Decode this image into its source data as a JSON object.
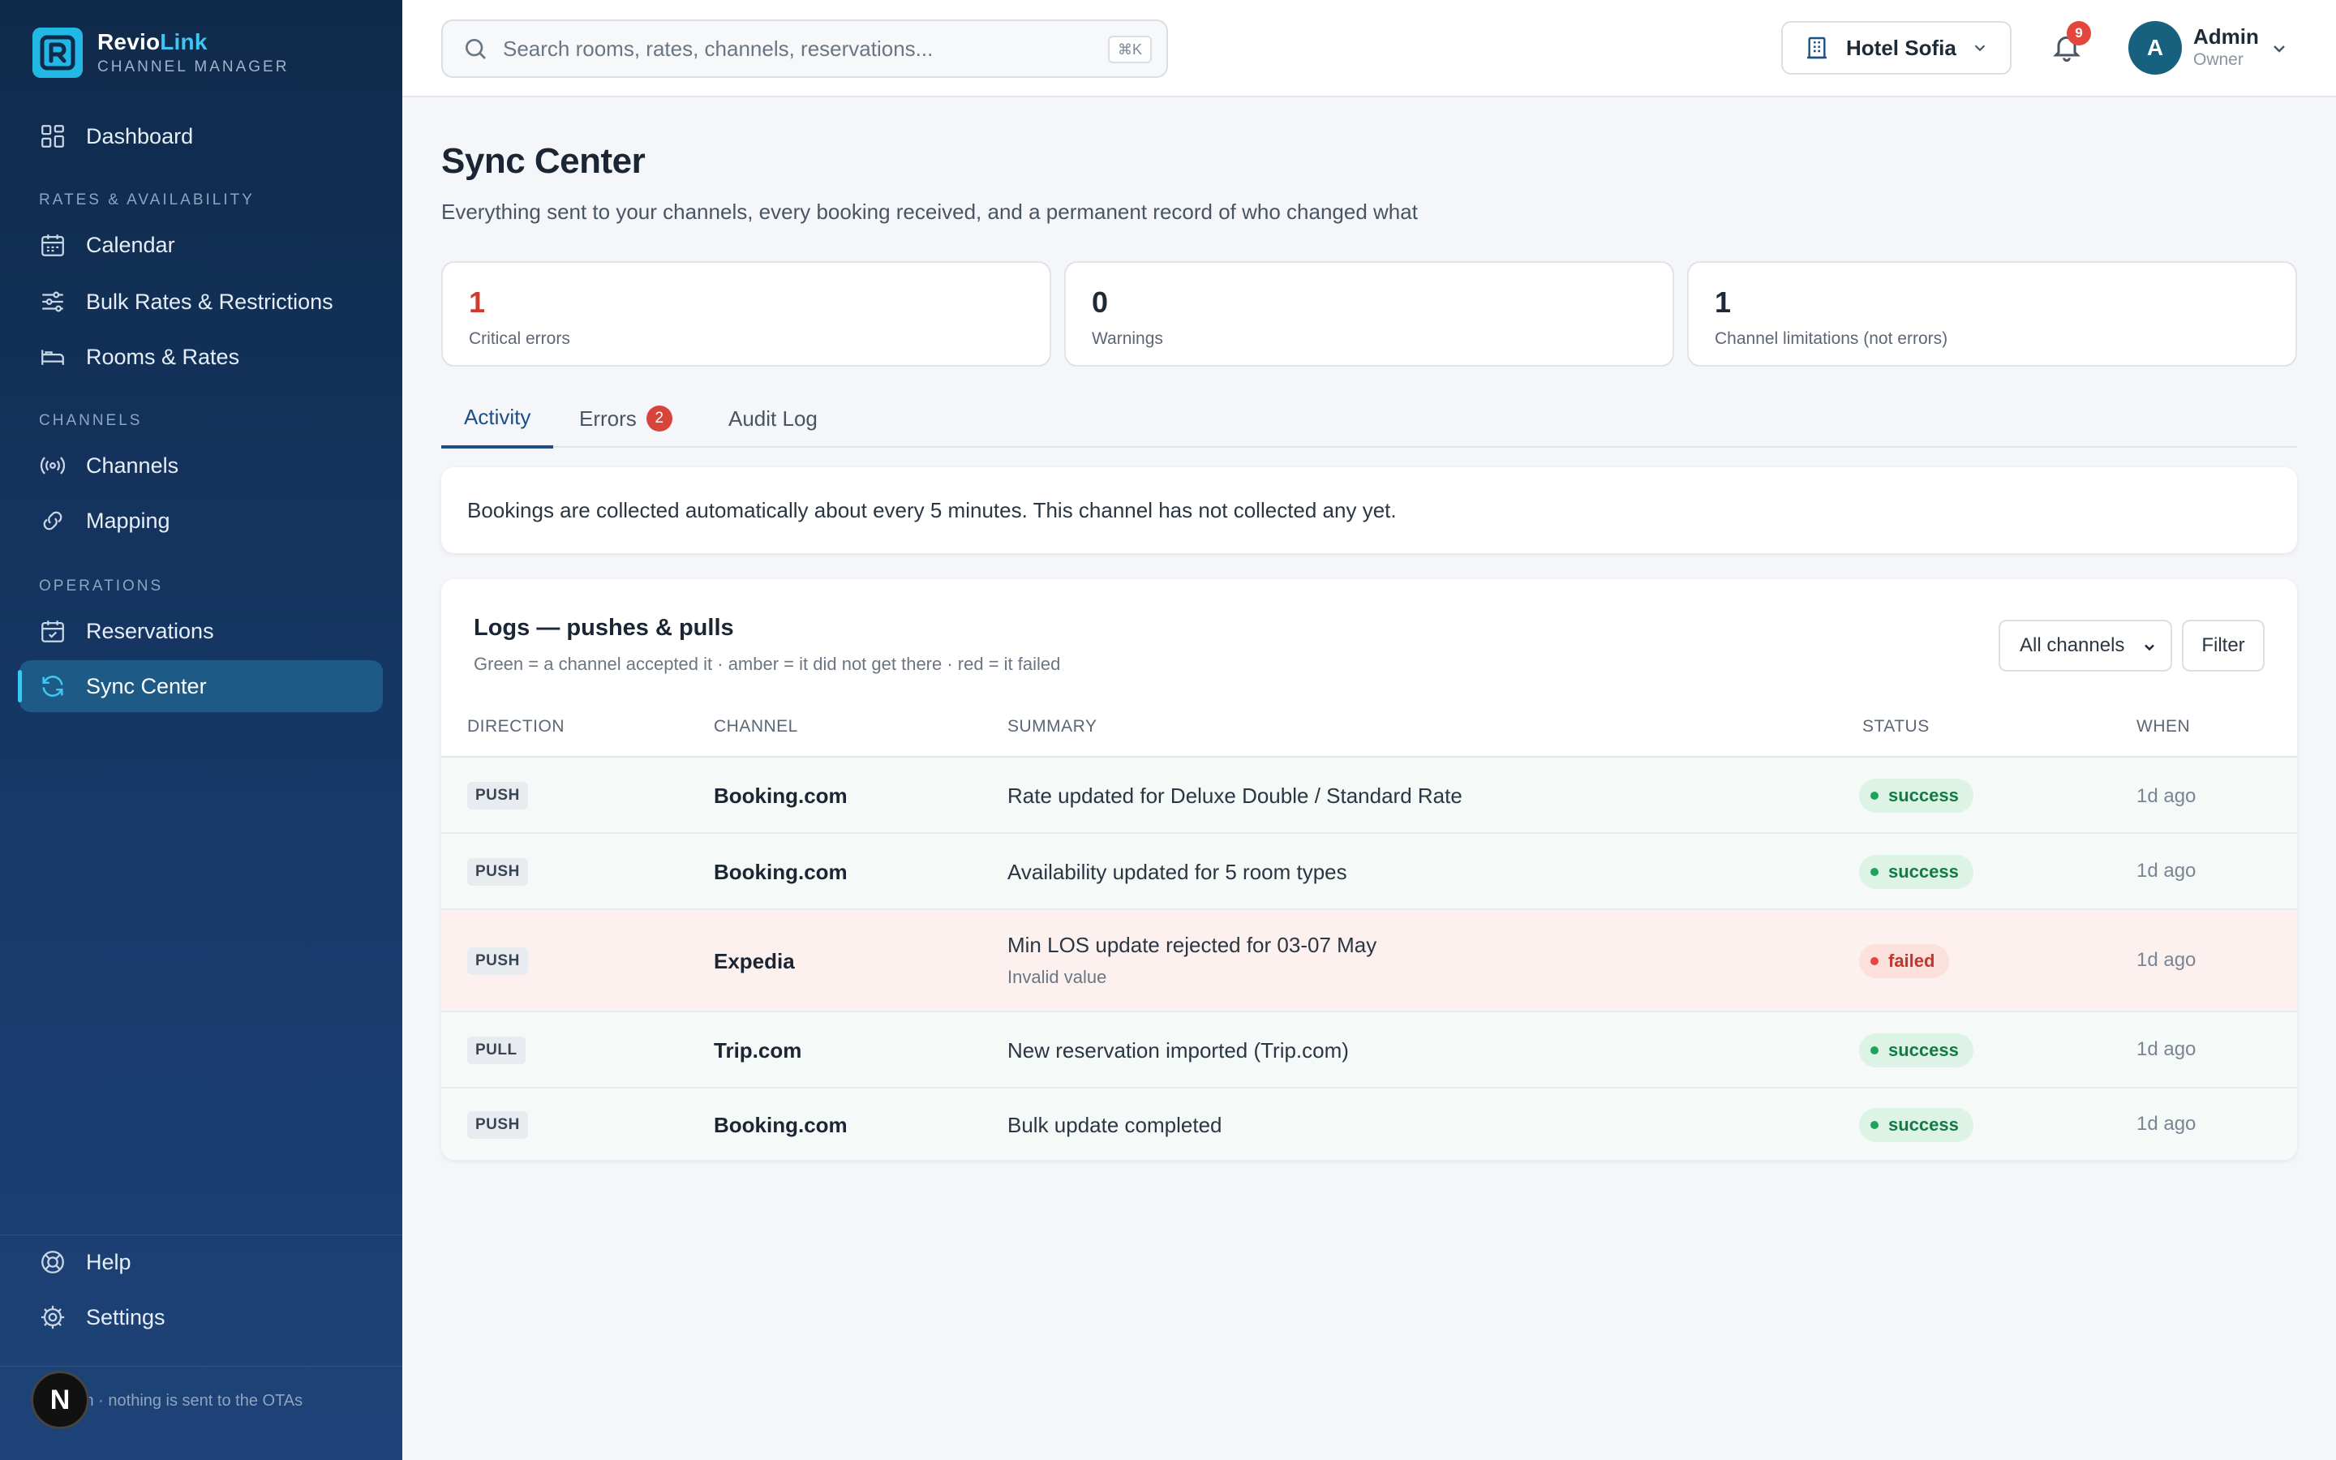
{
  "brand": {
    "name_main": "Revio",
    "name_accent": "Link",
    "subtitle": "CHANNEL MANAGER"
  },
  "nav": {
    "dashboard": "Dashboard",
    "section_rates": "RATES & AVAILABILITY",
    "calendar": "Calendar",
    "bulk_rates": "Bulk Rates & Restrictions",
    "rooms_rates": "Rooms & Rates",
    "section_channels": "CHANNELS",
    "channels": "Channels",
    "mapping": "Mapping",
    "section_operations": "OPERATIONS",
    "reservations": "Reservations",
    "sync_center": "Sync Center",
    "help": "Help",
    "settings": "Settings",
    "footer_text": "nnection · nothing is sent to the OTAs",
    "footer_badge": "N"
  },
  "topbar": {
    "search_placeholder": "Search rooms, rates, channels, reservations...",
    "search_shortcut": "⌘K",
    "hotel": "Hotel Sofia",
    "notifications_count": "9",
    "user_initial": "A",
    "user_name": "Admin",
    "user_role": "Owner"
  },
  "page": {
    "title": "Sync Center",
    "subtitle": "Everything sent to your channels, every booking received, and a permanent record of who changed what"
  },
  "stats": [
    {
      "value": "1",
      "label": "Critical errors"
    },
    {
      "value": "0",
      "label": "Warnings"
    },
    {
      "value": "1",
      "label": "Channel limitations (not errors)"
    }
  ],
  "tabs": {
    "activity": "Activity",
    "errors": "Errors",
    "errors_count": "2",
    "audit_log": "Audit Log"
  },
  "notice": "Bookings are collected automatically about every 5 minutes. This channel has not collected any yet.",
  "logs": {
    "title": "Logs — pushes & pulls",
    "subtitle": "Green = a channel accepted it · amber = it did not get there · red = it failed",
    "channel_filter": "All channels",
    "filter_button": "Filter",
    "columns": {
      "direction": "DIRECTION",
      "channel": "CHANNEL",
      "summary": "SUMMARY",
      "status": "STATUS",
      "when": "WHEN"
    },
    "rows": [
      {
        "direction": "PUSH",
        "channel": "Booking.com",
        "summary": "Rate updated for Deluxe Double / Standard Rate",
        "detail": "",
        "status": "success",
        "when": "1d ago"
      },
      {
        "direction": "PUSH",
        "channel": "Booking.com",
        "summary": "Availability updated for 5 room types",
        "detail": "",
        "status": "success",
        "when": "1d ago"
      },
      {
        "direction": "PUSH",
        "channel": "Expedia",
        "summary": "Min LOS update rejected for 03-07 May",
        "detail": "Invalid value",
        "status": "failed",
        "when": "1d ago"
      },
      {
        "direction": "PULL",
        "channel": "Trip.com",
        "summary": "New reservation imported (Trip.com)",
        "detail": "",
        "status": "success",
        "when": "1d ago"
      },
      {
        "direction": "PUSH",
        "channel": "Booking.com",
        "summary": "Bulk update completed",
        "detail": "",
        "status": "success",
        "when": "1d ago"
      }
    ]
  },
  "colors": {
    "sidebar_top": "#0f2a4a",
    "accent": "#3cc6f0",
    "success": "#1ea35c",
    "failed": "#e2463d",
    "active_tab": "#1b4f86"
  }
}
